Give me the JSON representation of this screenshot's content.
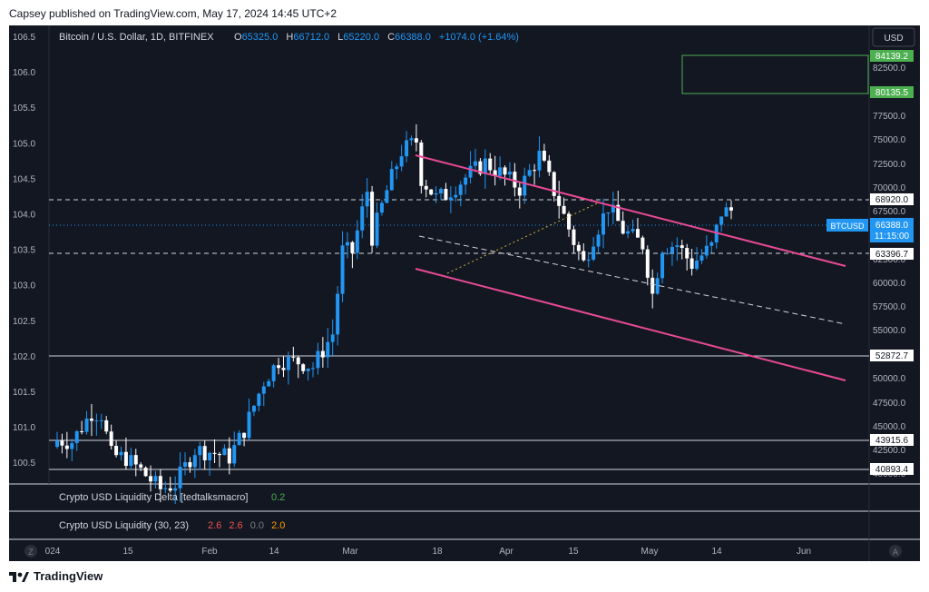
{
  "header": {
    "published": "Capsey published on TradingView.com, May 17, 2024 14:45 UTC+2"
  },
  "legend": {
    "symbol": "Bitcoin / U.S. Dollar, 1D, BITFINEX",
    "o_label": "O",
    "o_val": "65325.0",
    "h_label": "H",
    "h_val": "66712.0",
    "l_label": "L",
    "l_val": "65220.0",
    "c_label": "C",
    "c_val": "66388.0",
    "change": "+1074.0 (+1.64%)"
  },
  "left_axis": [
    "106.5",
    "106.0",
    "105.5",
    "105.0",
    "104.5",
    "104.0",
    "103.5",
    "103.0",
    "102.5",
    "102.0",
    "101.5",
    "101.0",
    "100.5"
  ],
  "right_axis": [
    "82500.0",
    "77500.0",
    "75000.0",
    "72500.0",
    "70000.0",
    "67500.0",
    "65000.0",
    "62500.0",
    "60000.0",
    "57500.0",
    "55000.0",
    "52500.0",
    "50000.0",
    "47500.0",
    "45000.0",
    "42500.0",
    "40000.0"
  ],
  "currency": "USD",
  "price_labels": {
    "box_top": "84139.2",
    "box_bottom": "80135.5",
    "level1": "68920.0",
    "symbol_tag": "BTCUSD",
    "last_price": "66388.0",
    "countdown": "11:15:00",
    "level2": "63396.7",
    "level3": "52872.7",
    "level4": "43915.6",
    "level5": "40893.4"
  },
  "time_axis": [
    "024",
    "15",
    "Feb",
    "14",
    "Mar",
    "18",
    "Apr",
    "15",
    "May",
    "14",
    "Jun"
  ],
  "indicators": {
    "delta_name": "Crypto USD Liquidity Delta [tedtalksmacro]",
    "delta_val": "0.2",
    "liq_name": "Crypto USD Liquidity (30, 23)",
    "liq_v1": "2.6",
    "liq_v2": "2.6",
    "liq_v3": "0.0",
    "liq_v4": "2.0"
  },
  "corner": {
    "left": "Z",
    "right": "A"
  },
  "footer": {
    "brand": "TradingView"
  },
  "colors": {
    "background": "#131722",
    "up_candle": "#2196f3",
    "down_candle": "#ffffff",
    "channel": "#e84a96",
    "tag_blue": "#2196f3",
    "tag_green": "#4caf50"
  },
  "chart_data": {
    "type": "candlestick",
    "symbol": "BTCUSD",
    "interval": "1D",
    "x_range": [
      "2024-01-01",
      "2024-06-05"
    ],
    "y_range": [
      40000,
      86000
    ],
    "close_series": [
      [
        "2024-01-01",
        44200
      ],
      [
        "2024-01-04",
        44100
      ],
      [
        "2024-01-08",
        46900
      ],
      [
        "2024-01-10",
        46700
      ],
      [
        "2024-01-12",
        42800
      ],
      [
        "2024-01-15",
        42500
      ],
      [
        "2024-01-18",
        41300
      ],
      [
        "2024-01-22",
        39500
      ],
      [
        "2024-01-25",
        40000
      ],
      [
        "2024-01-29",
        43300
      ],
      [
        "2024-02-01",
        43100
      ],
      [
        "2024-02-05",
        42600
      ],
      [
        "2024-02-08",
        45200
      ],
      [
        "2024-02-12",
        49900
      ],
      [
        "2024-02-15",
        51900
      ],
      [
        "2024-02-19",
        51800
      ],
      [
        "2024-02-22",
        51300
      ],
      [
        "2024-02-26",
        54500
      ],
      [
        "2024-02-28",
        62500
      ],
      [
        "2024-03-01",
        62400
      ],
      [
        "2024-03-04",
        68300
      ],
      [
        "2024-03-05",
        63800
      ],
      [
        "2024-03-08",
        68300
      ],
      [
        "2024-03-11",
        72100
      ],
      [
        "2024-03-14",
        73100
      ],
      [
        "2024-03-15",
        69500
      ],
      [
        "2024-03-18",
        67600
      ],
      [
        "2024-03-20",
        67900
      ],
      [
        "2024-03-25",
        70000
      ],
      [
        "2024-03-28",
        71000
      ],
      [
        "2024-04-01",
        69700
      ],
      [
        "2024-04-04",
        68500
      ],
      [
        "2024-04-08",
        71700
      ],
      [
        "2024-04-12",
        67100
      ],
      [
        "2024-04-15",
        63400
      ],
      [
        "2024-04-17",
        61300
      ],
      [
        "2024-04-19",
        63800
      ],
      [
        "2024-04-22",
        66800
      ],
      [
        "2024-04-25",
        64500
      ],
      [
        "2024-04-29",
        63100
      ],
      [
        "2024-05-01",
        58300
      ],
      [
        "2024-05-03",
        62900
      ],
      [
        "2024-05-06",
        63100
      ],
      [
        "2024-05-09",
        61200
      ],
      [
        "2024-05-13",
        62900
      ],
      [
        "2024-05-15",
        66200
      ],
      [
        "2024-05-17",
        66388
      ]
    ],
    "horizontal_levels": [
      68920.0,
      63396.7,
      52872.7,
      43915.6,
      40893.4
    ],
    "target_box": [
      80135.5,
      84139.2
    ]
  }
}
